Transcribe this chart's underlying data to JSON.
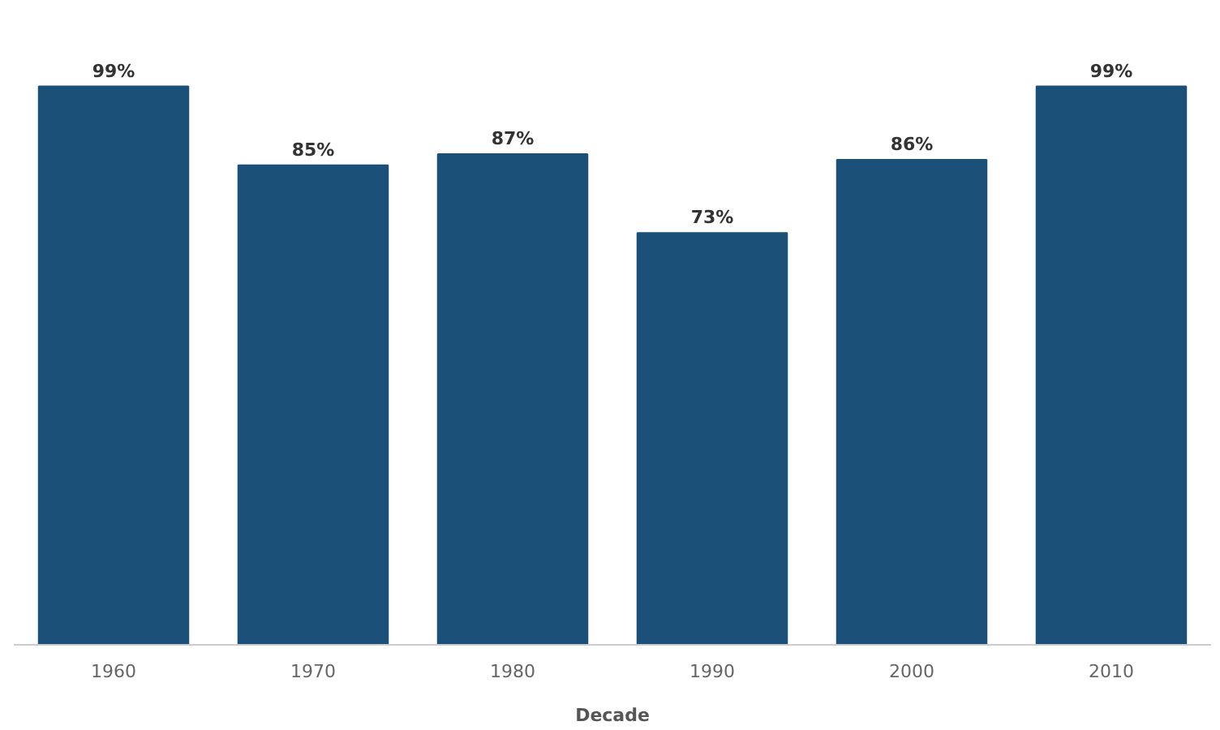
{
  "chart_data": {
    "type": "bar",
    "xlabel": "Decade",
    "categories": [
      "1960",
      "1970",
      "1980",
      "1990",
      "2000",
      "2010"
    ],
    "values": [
      99,
      85,
      87,
      73,
      86,
      99
    ],
    "value_labels": [
      "99%",
      "85%",
      "87%",
      "73%",
      "86%",
      "99%"
    ],
    "color": "#1b5078"
  }
}
